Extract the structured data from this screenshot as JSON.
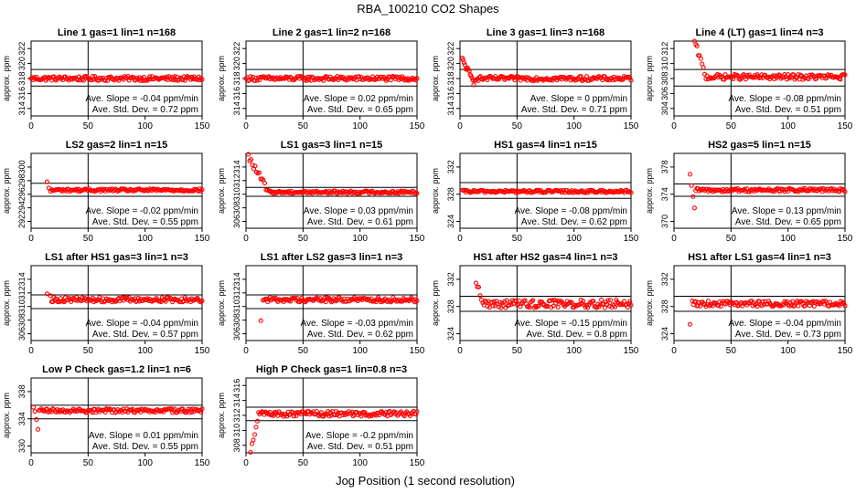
{
  "figure": {
    "title": "RBA_100210  CO2 Shapes",
    "xlabel": "Jog Position (1 second resolution)"
  },
  "chart_data": [
    {
      "type": "scatter",
      "title": "Line 1 gas=1 lin=1 n=168",
      "ylabel": "approx. ppm",
      "xlim": [
        0,
        150
      ],
      "ylim": [
        313,
        323
      ],
      "yticks": [
        314,
        316,
        318,
        320,
        322
      ],
      "xticks": [
        0,
        50,
        100,
        150
      ],
      "hlines": [
        319.2,
        317.0
      ],
      "vline": 50,
      "start": {
        "n": 1,
        "x0": 0,
        "y0": 318.0
      },
      "base": 318.0,
      "noise": 0.3,
      "slope": 0,
      "slope_label": "Ave. Slope = -0.04  ppm/min",
      "std_label": "Ave. Std. Dev. = 0.72  ppm"
    },
    {
      "type": "scatter",
      "title": "Line 2 gas=1 lin=2 n=168",
      "ylabel": "approx. ppm",
      "xlim": [
        0,
        150
      ],
      "ylim": [
        313,
        323
      ],
      "yticks": [
        314,
        316,
        318,
        320,
        322
      ],
      "xticks": [
        0,
        50,
        100,
        150
      ],
      "hlines": [
        319.2,
        317.0
      ],
      "vline": 50,
      "start": {
        "n": 1,
        "x0": 0,
        "y0": 318.0
      },
      "base": 318.0,
      "noise": 0.3,
      "slope": 0,
      "slope_label": "Ave. Slope = 0.02  ppm/min",
      "std_label": "Ave. Std. Dev. = 0.65  ppm"
    },
    {
      "type": "scatter",
      "title": "Line 3 gas=1 lin=3 n=168",
      "ylabel": "approx. ppm",
      "xlim": [
        0,
        150
      ],
      "ylim": [
        313,
        323
      ],
      "yticks": [
        314,
        316,
        318,
        320,
        322
      ],
      "xticks": [
        0,
        50,
        100,
        150
      ],
      "hlines": [
        319.2,
        317.0
      ],
      "vline": 50,
      "start": {
        "n": 14,
        "x0": 2,
        "y0": 320.5,
        "x1": 12,
        "y1": 317.5
      },
      "base": 318.0,
      "noise": 0.3,
      "slope": 0,
      "slope_label": "Ave. Slope = 0  ppm/min",
      "std_label": "Ave. Std. Dev. = 0.71  ppm"
    },
    {
      "type": "scatter",
      "title": "Line 4 (LT) gas=1 lin=4 n=3",
      "ylabel": "approx. ppm",
      "xlim": [
        0,
        150
      ],
      "ylim": [
        303,
        313
      ],
      "yticks": [
        304,
        306,
        308,
        310,
        312
      ],
      "xticks": [
        0,
        50,
        100,
        150
      ],
      "hlines": [
        309.2,
        307.0
      ],
      "vline": 50,
      "start": {
        "n": 10,
        "x0": 18,
        "y0": 313.0,
        "x1": 28,
        "y1": 308.2
      },
      "base": 308.2,
      "noise": 0.35,
      "slope": 0,
      "slope_label": "Ave. Slope = -0.08  ppm/min",
      "std_label": "Ave. Std. Dev. = 0.51  ppm"
    },
    {
      "type": "scatter",
      "title": "LS2 gas=2 lin=1 n=15",
      "ylabel": "approx. ppm",
      "xlim": [
        0,
        150
      ],
      "ylim": [
        291,
        302
      ],
      "yticks": [
        292,
        294,
        296,
        298,
        300
      ],
      "xticks": [
        0,
        50,
        100,
        150
      ],
      "hlines": [
        297.6,
        295.7
      ],
      "vline": 50,
      "start": {
        "n": 3,
        "x0": 14,
        "y0": 297.5,
        "x1": 17,
        "y1": 296.5
      },
      "base": 296.6,
      "noise": 0.2,
      "slope": 0,
      "slope_label": "Ave. Slope = -0.02  ppm/min",
      "std_label": "Ave. Std. Dev. = 0.55  ppm"
    },
    {
      "type": "scatter",
      "title": "LS1 gas=3 lin=1 n=15",
      "ylabel": "approx. ppm",
      "xlim": [
        0,
        150
      ],
      "ylim": [
        305,
        316
      ],
      "yticks": [
        306,
        308,
        310,
        312,
        314
      ],
      "xticks": [
        0,
        50,
        100,
        150
      ],
      "hlines": [
        311.0,
        309.7
      ],
      "vline": 50,
      "start": {
        "n": 16,
        "x0": 2,
        "y0": 315.5,
        "x1": 20,
        "y1": 310.3
      },
      "base": 310.3,
      "noise": 0.2,
      "slope": 0,
      "slope_label": "Ave. Slope = 0.03  ppm/min",
      "std_label": "Ave. Std. Dev. = 0.61  ppm"
    },
    {
      "type": "scatter",
      "title": "HS1 gas=4 lin=1 n=15",
      "ylabel": "approx. ppm",
      "xlim": [
        0,
        150
      ],
      "ylim": [
        323,
        334
      ],
      "yticks": [
        324,
        328,
        332
      ],
      "xticks": [
        0,
        50,
        100,
        150
      ],
      "hlines": [
        329.7,
        327.4
      ],
      "vline": 50,
      "start": {
        "n": 1,
        "x0": 2,
        "y0": 328.6
      },
      "base": 328.4,
      "noise": 0.2,
      "slope": 0,
      "slope_label": "Ave. Slope = -0.08  ppm/min",
      "std_label": "Ave. Std. Dev. = 0.62  ppm"
    },
    {
      "type": "scatter",
      "title": "HS2 gas=5 lin=1 n=15",
      "ylabel": "approx. ppm",
      "xlim": [
        0,
        150
      ],
      "ylim": [
        369,
        380
      ],
      "yticks": [
        370,
        374,
        378
      ],
      "xticks": [
        0,
        50,
        100,
        150
      ],
      "hlines": [
        375.5,
        373.7
      ],
      "vline": 50,
      "start": {
        "n": 4,
        "x0": 14,
        "y0": 376.5,
        "x1": 18,
        "y1": 372.0
      },
      "base": 374.6,
      "noise": 0.25,
      "slope": 0,
      "slope_label": "Ave. Slope = 0.13  ppm/min",
      "std_label": "Ave. Std. Dev. = 0.65  ppm"
    },
    {
      "type": "scatter",
      "title": "LS1 after HS1 gas=3 lin=1 n=3",
      "ylabel": "approx. ppm",
      "xlim": [
        0,
        150
      ],
      "ylim": [
        305,
        316
      ],
      "yticks": [
        306,
        308,
        310,
        312,
        314
      ],
      "xticks": [
        0,
        50,
        100,
        150
      ],
      "hlines": [
        311.7,
        309.7
      ],
      "vline": 50,
      "start": {
        "n": 2,
        "x0": 14,
        "y0": 312.3,
        "x1": 17,
        "y1": 311.5
      },
      "base": 311.0,
      "noise": 0.35,
      "slope": 0,
      "slope_label": "Ave. Slope = -0.04  ppm/min",
      "std_label": "Ave. Std. Dev. = 0.57  ppm"
    },
    {
      "type": "scatter",
      "title": "LS1 after LS2 gas=3 lin=1 n=3",
      "ylabel": "approx. ppm",
      "xlim": [
        0,
        150
      ],
      "ylim": [
        305,
        316
      ],
      "yticks": [
        306,
        308,
        310,
        312,
        314
      ],
      "xticks": [
        0,
        50,
        100,
        150
      ],
      "hlines": [
        311.7,
        309.7
      ],
      "vline": 50,
      "start": {
        "n": 2,
        "x0": 13,
        "y0": 308.3,
        "x1": 15,
        "y1": 311.0
      },
      "base": 311.0,
      "noise": 0.35,
      "slope": 0,
      "slope_label": "Ave. Slope = -0.03  ppm/min",
      "std_label": "Ave. Std. Dev. = 0.62  ppm"
    },
    {
      "type": "scatter",
      "title": "HS1 after HS2 gas=4 lin=1 n=3",
      "ylabel": "approx. ppm",
      "xlim": [
        0,
        150
      ],
      "ylim": [
        323,
        334
      ],
      "yticks": [
        324,
        328,
        332
      ],
      "xticks": [
        0,
        50,
        100,
        150
      ],
      "hlines": [
        329.5,
        327.3
      ],
      "vline": 50,
      "start": {
        "n": 6,
        "x0": 14,
        "y0": 331.8,
        "x1": 20,
        "y1": 328.5
      },
      "base": 328.4,
      "noise": 0.6,
      "slope": 0,
      "slope_label": "Ave. Slope = -0.15  ppm/min",
      "std_label": "Ave. Std. Dev. = 0.8  ppm"
    },
    {
      "type": "scatter",
      "title": "HS1 after LS1 gas=4 lin=1 n=3",
      "ylabel": "approx. ppm",
      "xlim": [
        0,
        150
      ],
      "ylim": [
        323,
        334
      ],
      "yticks": [
        324,
        328,
        332
      ],
      "xticks": [
        0,
        50,
        100,
        150
      ],
      "hlines": [
        329.5,
        327.3
      ],
      "vline": 50,
      "start": {
        "n": 2,
        "x0": 14,
        "y0": 325.7,
        "x1": 16,
        "y1": 328.4
      },
      "base": 328.4,
      "noise": 0.4,
      "slope": 0,
      "slope_label": "Ave. Slope = -0.04  ppm/min",
      "std_label": "Ave. Std. Dev. = 0.73  ppm"
    },
    {
      "type": "scatter",
      "title": "Low P Check gas=1.2 lin=1 n=6",
      "ylabel": "approx. ppm",
      "xlim": [
        0,
        150
      ],
      "ylim": [
        329,
        340
      ],
      "yticks": [
        330,
        334,
        338
      ],
      "xticks": [
        0,
        50,
        100,
        150
      ],
      "hlines": [
        336.0,
        334.0
      ],
      "vline": 50,
      "start": {
        "n": 4,
        "x0": 2,
        "y0": 336.0,
        "x1": 6,
        "y1": 332.5
      },
      "base": 335.2,
      "noise": 0.3,
      "slope": 0,
      "slope_label": "Ave. Slope = 0.01  ppm/min",
      "std_label": "Ave. Std. Dev. = 0.55  ppm"
    },
    {
      "type": "scatter",
      "title": "High P Check gas=1 lin=0.8 n=3",
      "ylabel": "approx. ppm",
      "xlim": [
        0,
        150
      ],
      "ylim": [
        307,
        317
      ],
      "yticks": [
        308,
        310,
        312,
        314,
        316
      ],
      "xticks": [
        0,
        50,
        100,
        150
      ],
      "hlines": [
        313.1,
        311.3
      ],
      "vline": 50,
      "start": {
        "n": 6,
        "x0": 4,
        "y0": 307.3,
        "x1": 10,
        "y1": 311.5
      },
      "base": 312.2,
      "noise": 0.35,
      "slope": 0,
      "slope_label": "Ave. Slope = -0.2  ppm/min",
      "std_label": "Ave. Std. Dev. = 0.51  ppm"
    }
  ],
  "colors": {
    "points": "#ff0000",
    "axes": "#000000",
    "text": "#000000"
  }
}
